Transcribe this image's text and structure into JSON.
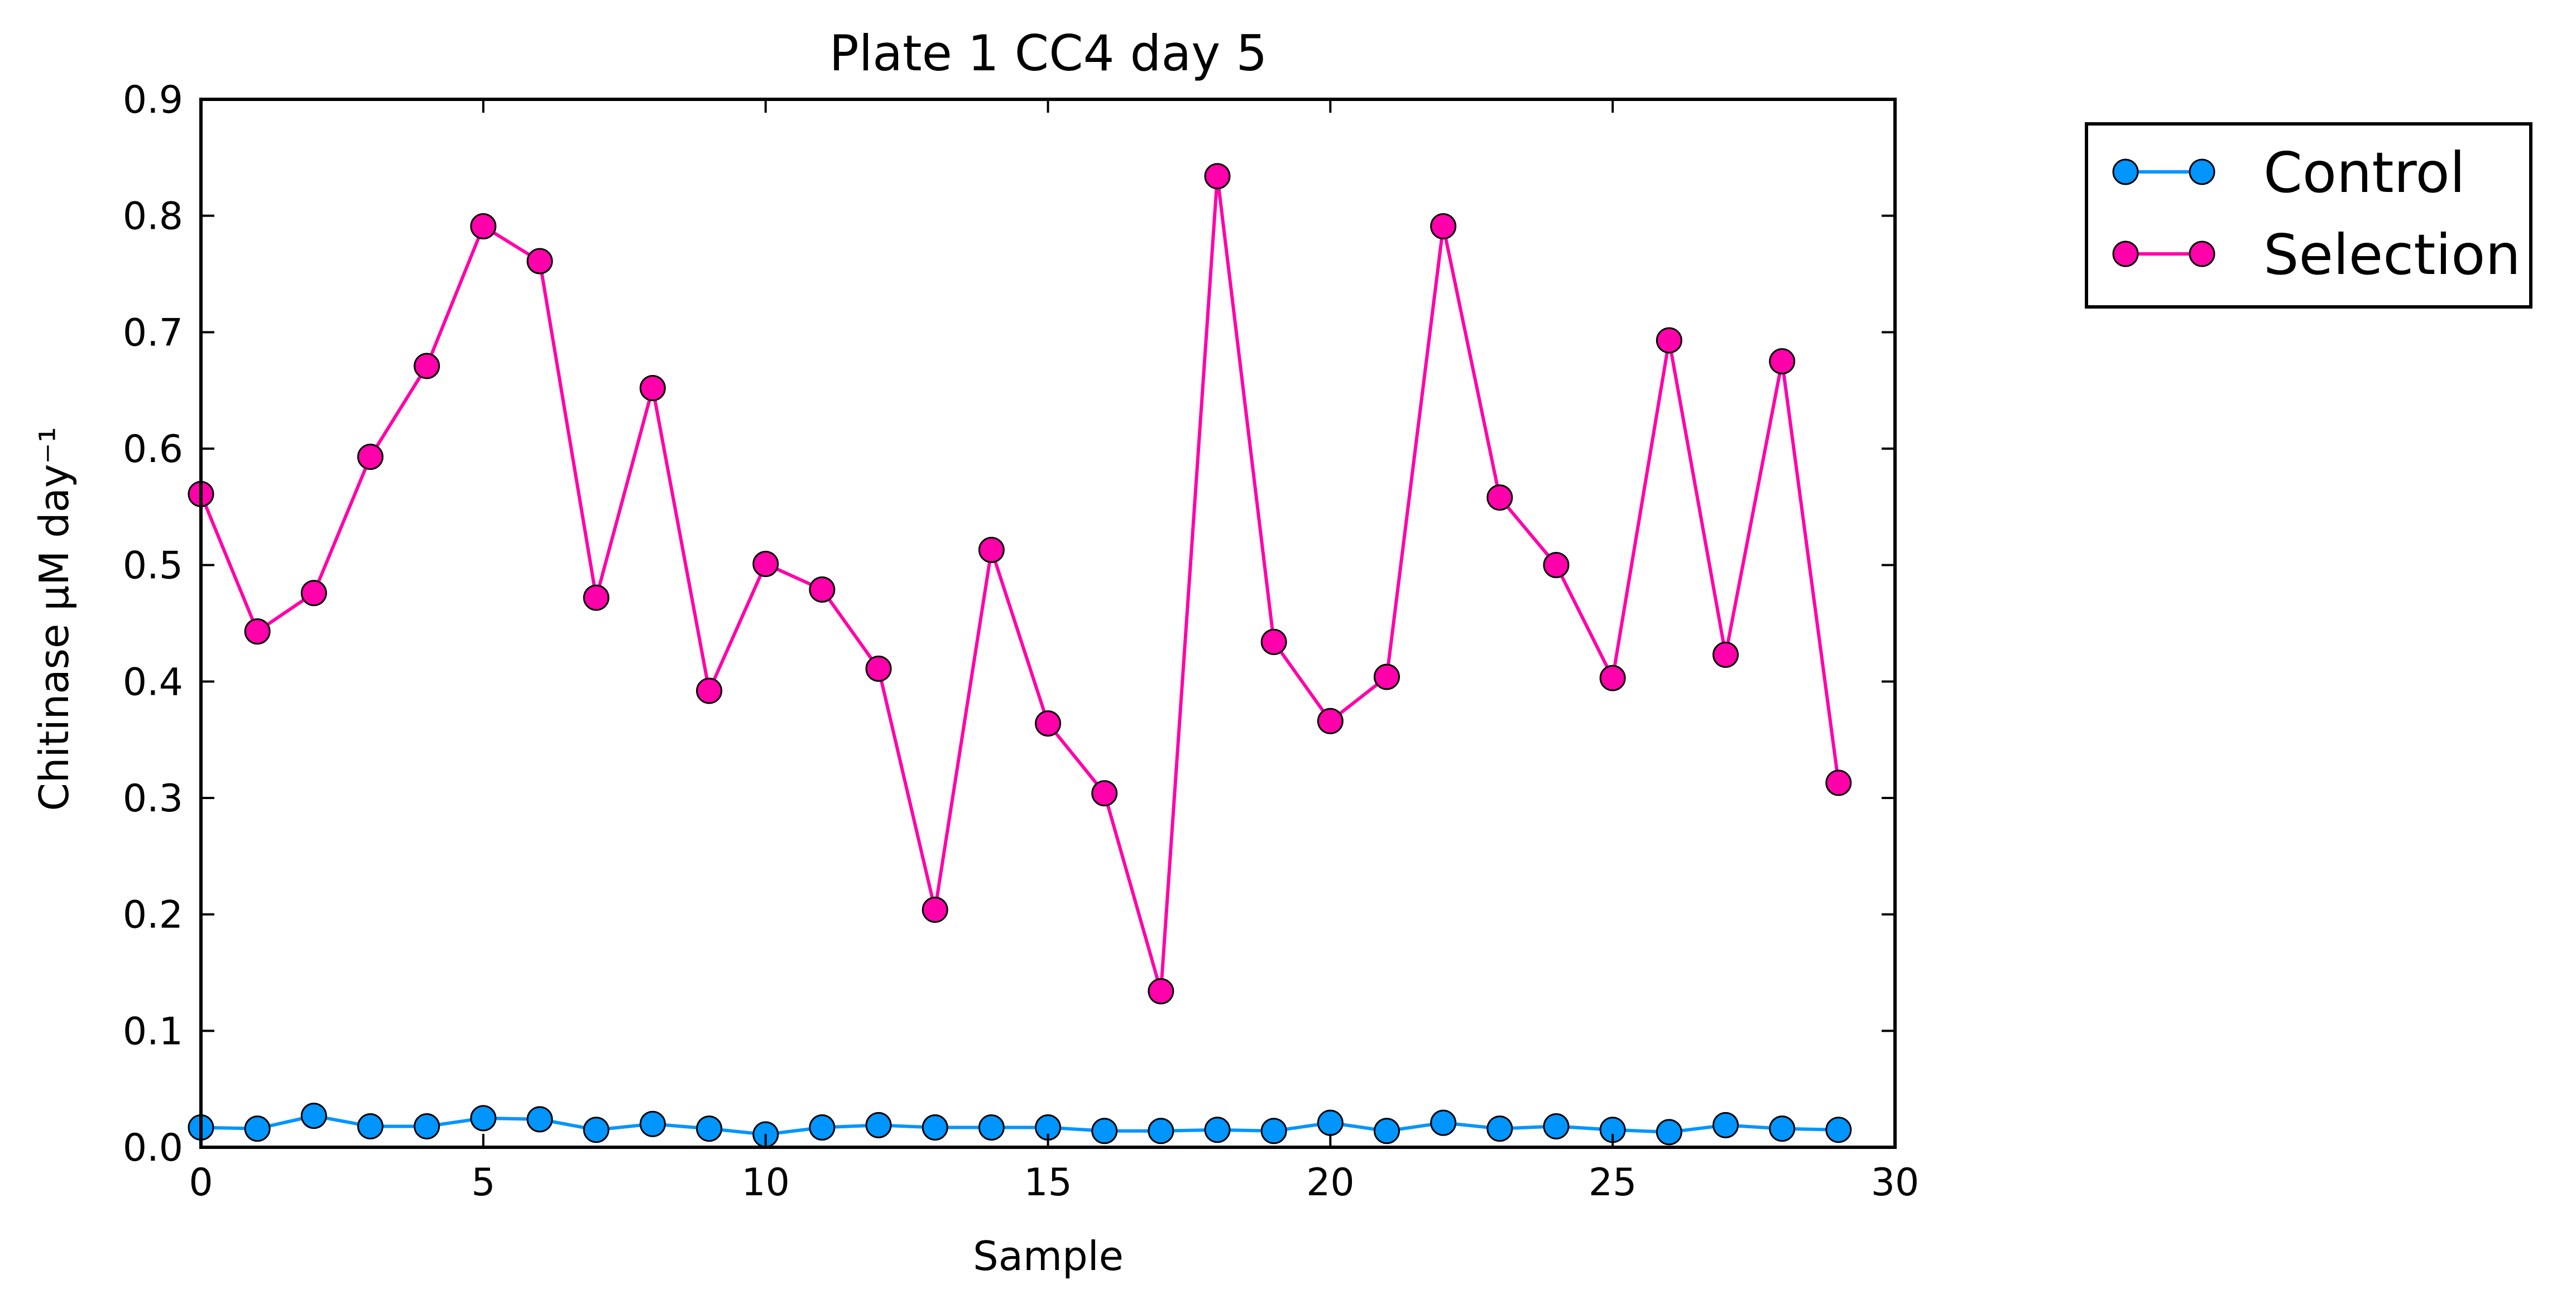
{
  "chart_data": {
    "type": "line",
    "title": "Plate 1 CC4 day 5",
    "xlabel": "Sample",
    "ylabel": "Chitinase μM day⁻¹",
    "xlim": [
      0,
      30
    ],
    "ylim": [
      0,
      0.9
    ],
    "xticks": [
      "0",
      "5",
      "10",
      "15",
      "20",
      "25",
      "30"
    ],
    "yticks": [
      "0.0",
      "0.1",
      "0.2",
      "0.3",
      "0.4",
      "0.5",
      "0.6",
      "0.7",
      "0.8",
      "0.9"
    ],
    "grid": false,
    "legend_position": "outside-top-right",
    "x": [
      0,
      1,
      2,
      3,
      4,
      5,
      6,
      7,
      8,
      9,
      10,
      11,
      12,
      13,
      14,
      15,
      16,
      17,
      18,
      19,
      20,
      21,
      22,
      23,
      24,
      25,
      26,
      27,
      28,
      29
    ],
    "series": [
      {
        "name": "Control",
        "color": "#0095ff",
        "marker": "circle",
        "values": [
          0.017,
          0.016,
          0.027,
          0.018,
          0.018,
          0.025,
          0.024,
          0.015,
          0.02,
          0.016,
          0.011,
          0.017,
          0.019,
          0.017,
          0.017,
          0.017,
          0.014,
          0.014,
          0.015,
          0.014,
          0.021,
          0.014,
          0.021,
          0.016,
          0.018,
          0.015,
          0.013,
          0.019,
          0.016,
          0.015
        ]
      },
      {
        "name": "Selection",
        "color": "#ff00aa",
        "marker": "circle",
        "values": [
          0.561,
          0.443,
          0.476,
          0.593,
          0.671,
          0.791,
          0.761,
          0.472,
          0.652,
          0.392,
          0.501,
          0.479,
          0.411,
          0.204,
          0.513,
          0.364,
          0.304,
          0.134,
          0.834,
          0.434,
          0.366,
          0.404,
          0.791,
          0.558,
          0.5,
          0.403,
          0.693,
          0.423,
          0.675,
          0.313
        ]
      }
    ]
  }
}
